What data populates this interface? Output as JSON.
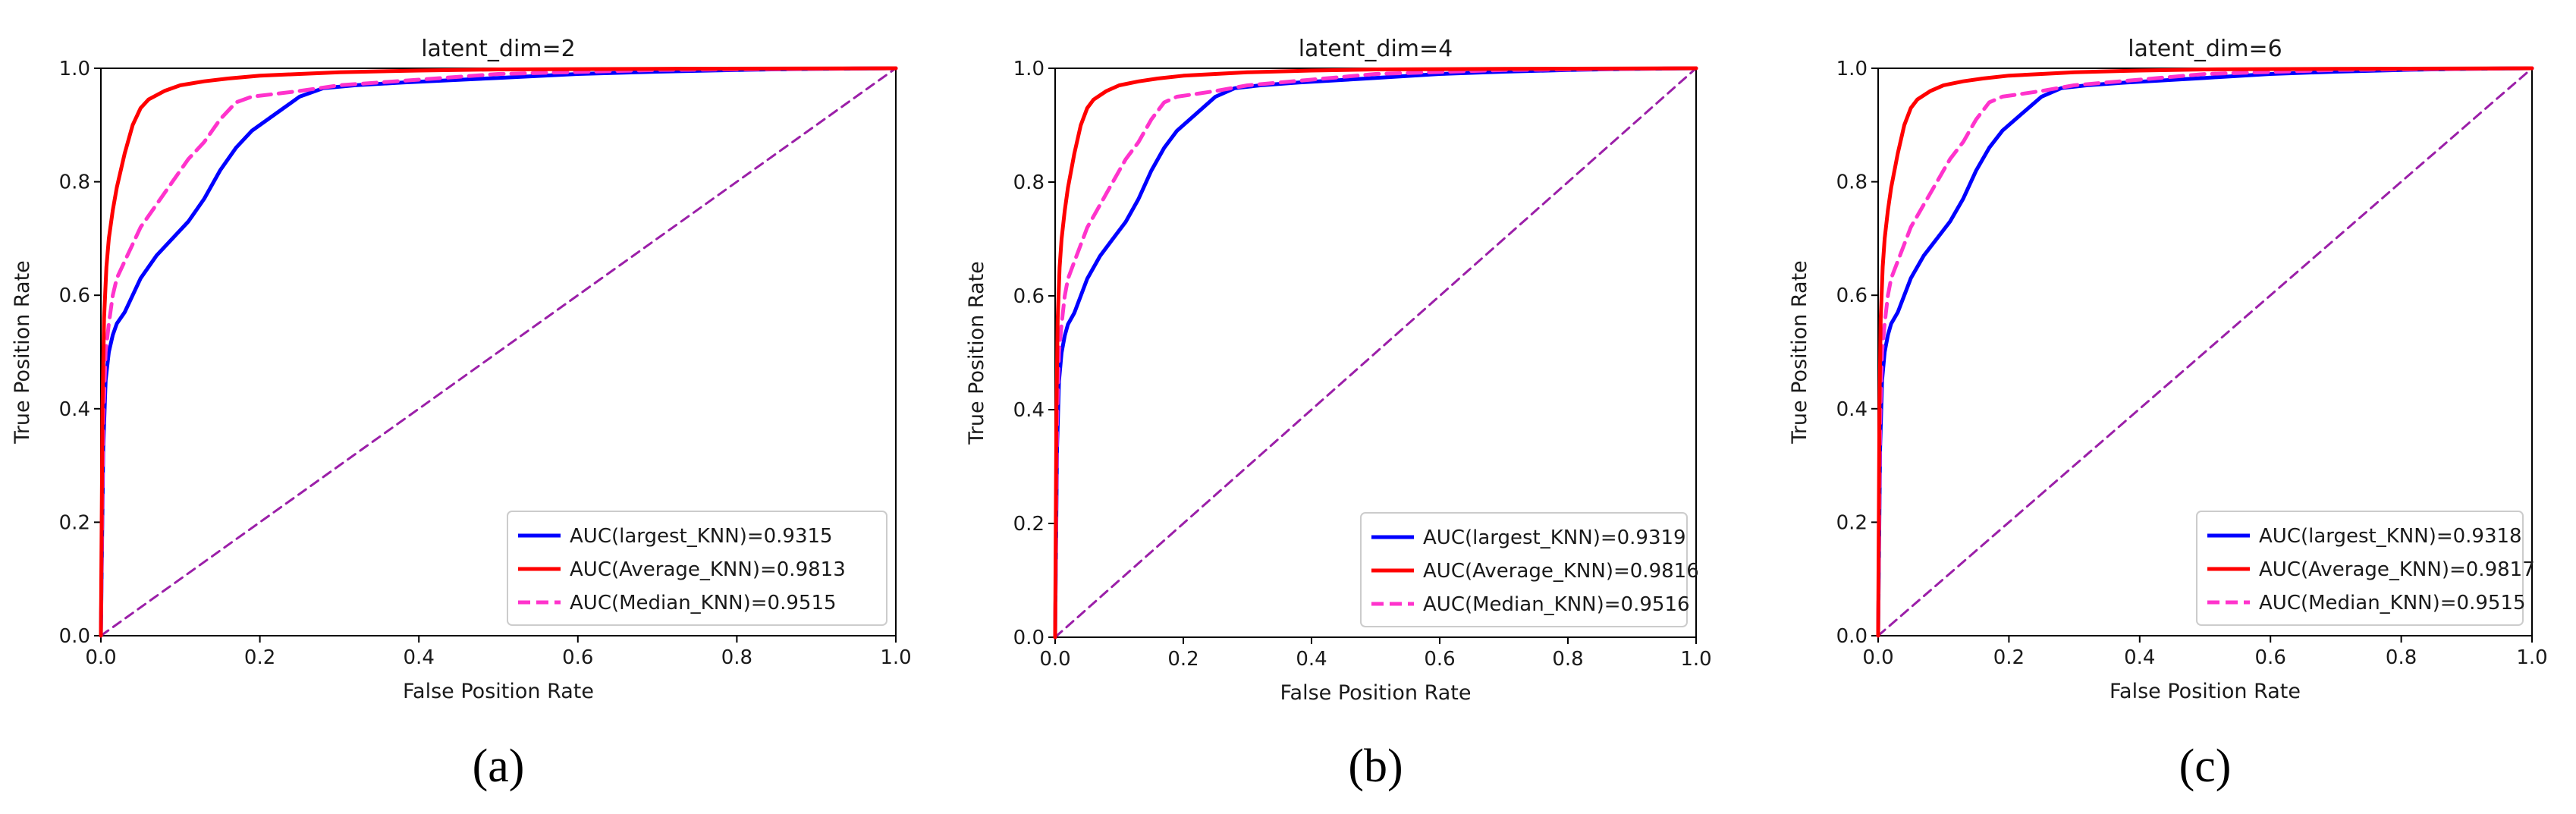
{
  "chart_data": [
    {
      "type": "line",
      "panel_label": "(a)",
      "title": "latent_dim=2",
      "xlabel": "False Position Rate",
      "ylabel": "True Position Rate",
      "xlim": [
        0,
        1
      ],
      "ylim": [
        0,
        1
      ],
      "xticks": [
        "0.0",
        "0.2",
        "0.4",
        "0.6",
        "0.8",
        "1.0"
      ],
      "yticks": [
        "0.0",
        "0.2",
        "0.4",
        "0.6",
        "0.8",
        "1.0"
      ],
      "legend_position": "lower-right",
      "series": [
        {
          "name": "AUC(largest_KNN)=0.9315",
          "color": "#0000ff",
          "dash": "solid",
          "x": [
            0,
            0.003,
            0.006,
            0.01,
            0.015,
            0.02,
            0.03,
            0.04,
            0.05,
            0.07,
            0.09,
            0.11,
            0.13,
            0.15,
            0.17,
            0.19,
            0.22,
            0.25,
            0.28,
            0.32,
            0.38,
            0.5,
            0.6,
            0.7,
            0.8,
            0.9,
            1.0
          ],
          "y": [
            0,
            0.33,
            0.45,
            0.5,
            0.53,
            0.55,
            0.57,
            0.6,
            0.63,
            0.67,
            0.7,
            0.73,
            0.77,
            0.82,
            0.86,
            0.89,
            0.92,
            0.95,
            0.965,
            0.97,
            0.975,
            0.983,
            0.99,
            0.994,
            0.997,
            0.999,
            1.0
          ]
        },
        {
          "name": "AUC(Average_KNN)=0.9813",
          "color": "#ff0000",
          "dash": "solid",
          "x": [
            0,
            0.002,
            0.004,
            0.007,
            0.01,
            0.015,
            0.02,
            0.03,
            0.04,
            0.05,
            0.06,
            0.08,
            0.1,
            0.13,
            0.16,
            0.2,
            0.25,
            0.3,
            0.4,
            0.5,
            0.7,
            1.0
          ],
          "y": [
            0,
            0.4,
            0.56,
            0.65,
            0.7,
            0.75,
            0.79,
            0.85,
            0.9,
            0.93,
            0.945,
            0.96,
            0.97,
            0.977,
            0.982,
            0.987,
            0.99,
            0.993,
            0.996,
            0.998,
            0.999,
            1.0
          ]
        },
        {
          "name": "AUC(Median_KNN)=0.9515",
          "color": "#ff33cc",
          "dash": "dashed",
          "x": [
            0,
            0.003,
            0.006,
            0.01,
            0.015,
            0.02,
            0.03,
            0.04,
            0.05,
            0.07,
            0.09,
            0.11,
            0.13,
            0.15,
            0.17,
            0.19,
            0.22,
            0.25,
            0.3,
            0.4,
            0.5,
            0.7,
            1.0
          ],
          "y": [
            0,
            0.38,
            0.5,
            0.55,
            0.6,
            0.63,
            0.66,
            0.69,
            0.72,
            0.76,
            0.8,
            0.84,
            0.87,
            0.91,
            0.94,
            0.95,
            0.955,
            0.96,
            0.97,
            0.98,
            0.99,
            0.997,
            1.0
          ]
        },
        {
          "name": "",
          "color": "#9b1fa8",
          "dash": "diagonal",
          "x": [
            0,
            1
          ],
          "y": [
            0,
            1
          ]
        }
      ]
    },
    {
      "type": "line",
      "panel_label": "(b)",
      "title": "latent_dim=4",
      "xlabel": "False Position Rate",
      "ylabel": "True Position Rate",
      "xlim": [
        0,
        1
      ],
      "ylim": [
        0,
        1
      ],
      "xticks": [
        "0.0",
        "0.2",
        "0.4",
        "0.6",
        "0.8",
        "1.0"
      ],
      "yticks": [
        "0.0",
        "0.2",
        "0.4",
        "0.6",
        "0.8",
        "1.0"
      ],
      "legend_position": "lower-right",
      "series": [
        {
          "name": "AUC(largest_KNN)=0.9319",
          "color": "#0000ff",
          "dash": "solid",
          "x": [
            0,
            0.003,
            0.006,
            0.01,
            0.015,
            0.02,
            0.03,
            0.04,
            0.05,
            0.07,
            0.09,
            0.11,
            0.13,
            0.15,
            0.17,
            0.19,
            0.22,
            0.25,
            0.28,
            0.32,
            0.38,
            0.5,
            0.6,
            0.7,
            0.8,
            0.9,
            1.0
          ],
          "y": [
            0,
            0.33,
            0.45,
            0.5,
            0.53,
            0.55,
            0.57,
            0.6,
            0.63,
            0.67,
            0.7,
            0.73,
            0.77,
            0.82,
            0.86,
            0.89,
            0.92,
            0.95,
            0.965,
            0.97,
            0.975,
            0.983,
            0.99,
            0.994,
            0.997,
            0.999,
            1.0
          ]
        },
        {
          "name": "AUC(Average_KNN)=0.9816",
          "color": "#ff0000",
          "dash": "solid",
          "x": [
            0,
            0.002,
            0.004,
            0.007,
            0.01,
            0.015,
            0.02,
            0.03,
            0.04,
            0.05,
            0.06,
            0.08,
            0.1,
            0.13,
            0.16,
            0.2,
            0.25,
            0.3,
            0.4,
            0.5,
            0.7,
            1.0
          ],
          "y": [
            0,
            0.4,
            0.56,
            0.65,
            0.7,
            0.75,
            0.79,
            0.85,
            0.9,
            0.93,
            0.945,
            0.96,
            0.97,
            0.977,
            0.982,
            0.987,
            0.99,
            0.993,
            0.996,
            0.998,
            0.999,
            1.0
          ]
        },
        {
          "name": "AUC(Median_KNN)=0.9516",
          "color": "#ff33cc",
          "dash": "dashed",
          "x": [
            0,
            0.003,
            0.006,
            0.01,
            0.015,
            0.02,
            0.03,
            0.04,
            0.05,
            0.07,
            0.09,
            0.11,
            0.13,
            0.15,
            0.17,
            0.19,
            0.22,
            0.25,
            0.3,
            0.4,
            0.5,
            0.7,
            1.0
          ],
          "y": [
            0,
            0.38,
            0.5,
            0.55,
            0.6,
            0.63,
            0.66,
            0.69,
            0.72,
            0.76,
            0.8,
            0.84,
            0.87,
            0.91,
            0.94,
            0.95,
            0.955,
            0.96,
            0.97,
            0.98,
            0.99,
            0.997,
            1.0
          ]
        },
        {
          "name": "",
          "color": "#9b1fa8",
          "dash": "diagonal",
          "x": [
            0,
            1
          ],
          "y": [
            0,
            1
          ]
        }
      ]
    },
    {
      "type": "line",
      "panel_label": "(c)",
      "title": "latent_dim=6",
      "xlabel": "False Position Rate",
      "ylabel": "True Position Rate",
      "xlim": [
        0,
        1
      ],
      "ylim": [
        0,
        1
      ],
      "xticks": [
        "0.0",
        "0.2",
        "0.4",
        "0.6",
        "0.8",
        "1.0"
      ],
      "yticks": [
        "0.0",
        "0.2",
        "0.4",
        "0.6",
        "0.8",
        "1.0"
      ],
      "legend_position": "lower-right",
      "series": [
        {
          "name": "AUC(largest_KNN)=0.9318",
          "color": "#0000ff",
          "dash": "solid",
          "x": [
            0,
            0.003,
            0.006,
            0.01,
            0.015,
            0.02,
            0.03,
            0.04,
            0.05,
            0.07,
            0.09,
            0.11,
            0.13,
            0.15,
            0.17,
            0.19,
            0.22,
            0.25,
            0.28,
            0.32,
            0.38,
            0.5,
            0.6,
            0.7,
            0.8,
            0.9,
            1.0
          ],
          "y": [
            0,
            0.33,
            0.45,
            0.5,
            0.53,
            0.55,
            0.57,
            0.6,
            0.63,
            0.67,
            0.7,
            0.73,
            0.77,
            0.82,
            0.86,
            0.89,
            0.92,
            0.95,
            0.965,
            0.97,
            0.975,
            0.983,
            0.99,
            0.994,
            0.997,
            0.999,
            1.0
          ]
        },
        {
          "name": "AUC(Average_KNN)=0.9817",
          "color": "#ff0000",
          "dash": "solid",
          "x": [
            0,
            0.002,
            0.004,
            0.007,
            0.01,
            0.015,
            0.02,
            0.03,
            0.04,
            0.05,
            0.06,
            0.08,
            0.1,
            0.13,
            0.16,
            0.2,
            0.25,
            0.3,
            0.4,
            0.5,
            0.7,
            1.0
          ],
          "y": [
            0,
            0.4,
            0.56,
            0.65,
            0.7,
            0.75,
            0.79,
            0.85,
            0.9,
            0.93,
            0.945,
            0.96,
            0.97,
            0.977,
            0.982,
            0.987,
            0.99,
            0.993,
            0.996,
            0.998,
            0.999,
            1.0
          ]
        },
        {
          "name": "AUC(Median_KNN)=0.9515",
          "color": "#ff33cc",
          "dash": "dashed",
          "x": [
            0,
            0.003,
            0.006,
            0.01,
            0.015,
            0.02,
            0.03,
            0.04,
            0.05,
            0.07,
            0.09,
            0.11,
            0.13,
            0.15,
            0.17,
            0.19,
            0.22,
            0.25,
            0.3,
            0.4,
            0.5,
            0.7,
            1.0
          ],
          "y": [
            0,
            0.38,
            0.5,
            0.55,
            0.6,
            0.63,
            0.66,
            0.69,
            0.72,
            0.76,
            0.8,
            0.84,
            0.87,
            0.91,
            0.94,
            0.95,
            0.955,
            0.96,
            0.97,
            0.98,
            0.99,
            0.997,
            1.0
          ]
        },
        {
          "name": "",
          "color": "#9b1fa8",
          "dash": "diagonal",
          "x": [
            0,
            1
          ],
          "y": [
            0,
            1
          ]
        }
      ]
    }
  ]
}
